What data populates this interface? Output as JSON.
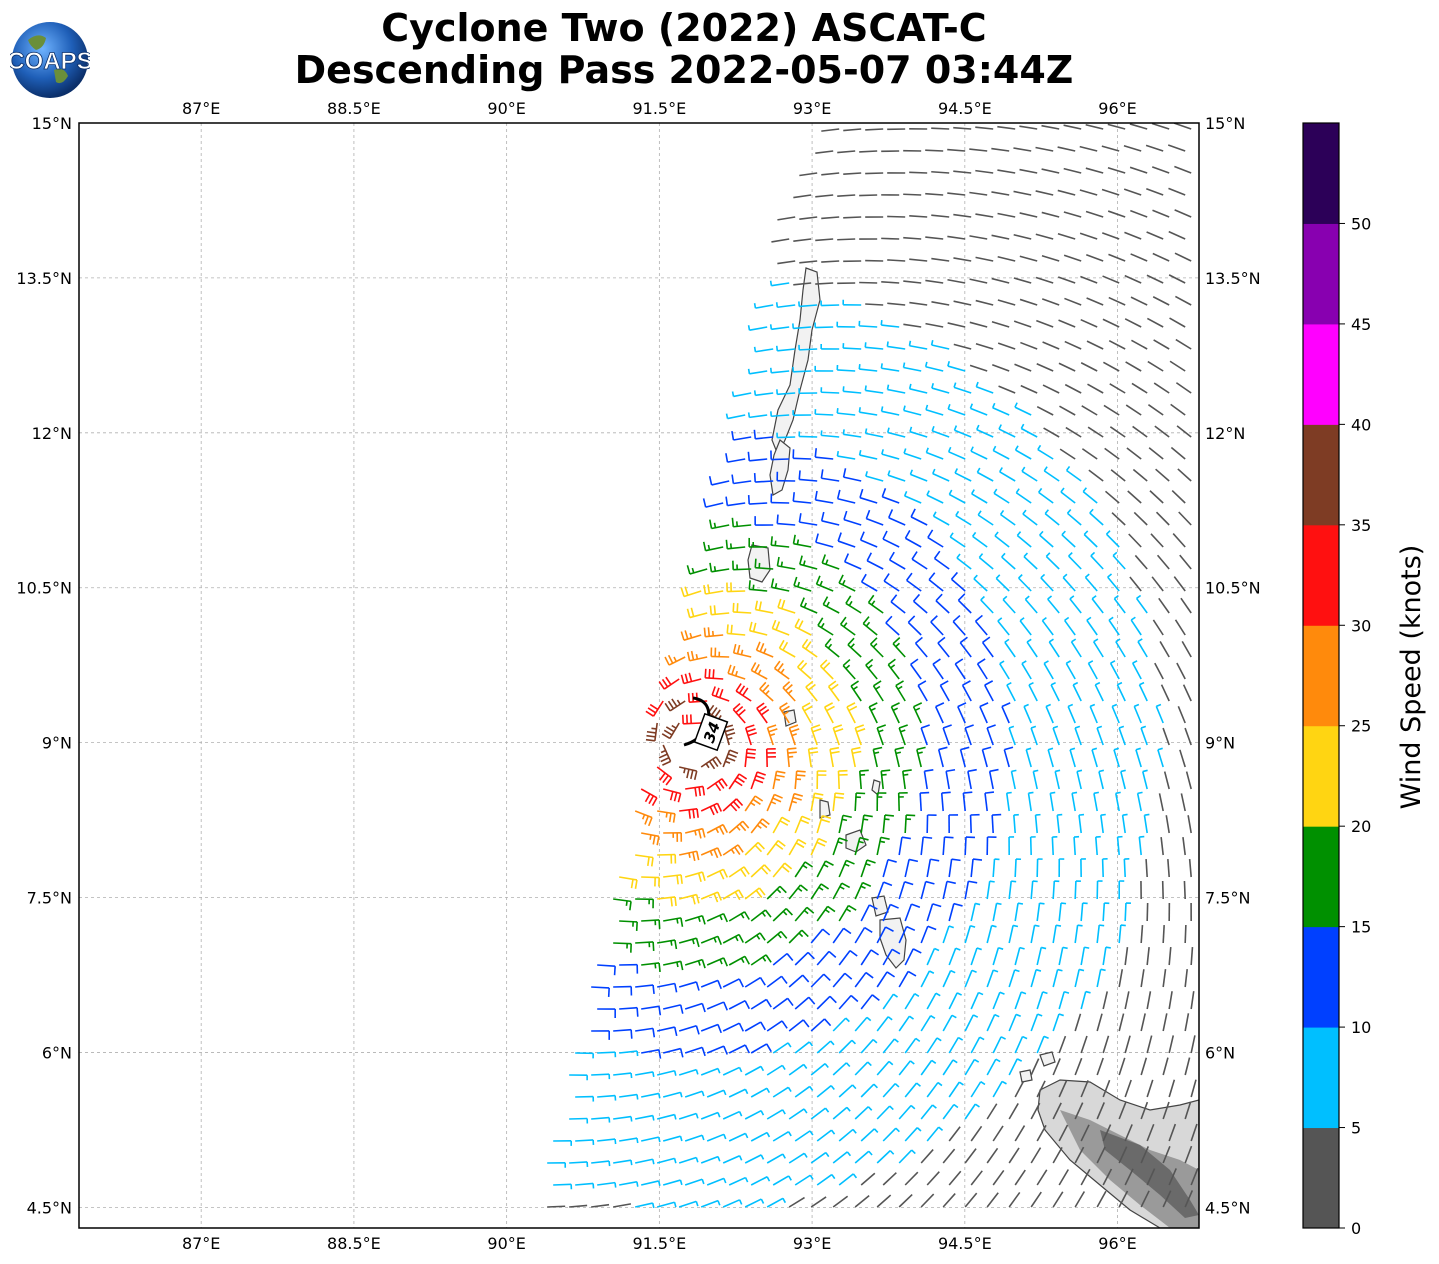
{
  "title_line1": "Cyclone Two (2022) ASCAT-C",
  "title_line2": "Descending Pass 2022-05-07 03:44Z",
  "logo_text": "COAPS",
  "map": {
    "lon_ticks": [
      "87°E",
      "88.5°E",
      "90°E",
      "91.5°E",
      "93°E",
      "94.5°E",
      "96°E"
    ],
    "lat_ticks": [
      "15°N",
      "13.5°N",
      "12°N",
      "10.5°N",
      "9°N",
      "7.5°N",
      "6°N",
      "4.5°N"
    ],
    "lon_range": [
      85.8,
      96.8
    ],
    "lat_range": [
      4.3,
      15.0
    ],
    "center_marker_label": "34",
    "center": [
      91.85,
      9.0
    ]
  },
  "colorbar": {
    "label": "Wind Speed (knots)",
    "ticks": [
      "0",
      "5",
      "10",
      "15",
      "20",
      "25",
      "30",
      "35",
      "40",
      "45",
      "50"
    ],
    "colors": [
      "#555555",
      "#00bfff",
      "#0040ff",
      "#009000",
      "#ffd512",
      "#ff8a0c",
      "#ff1010",
      "#7e3c24",
      "#ff00ff",
      "#8800b0",
      "#2c0058"
    ]
  }
}
